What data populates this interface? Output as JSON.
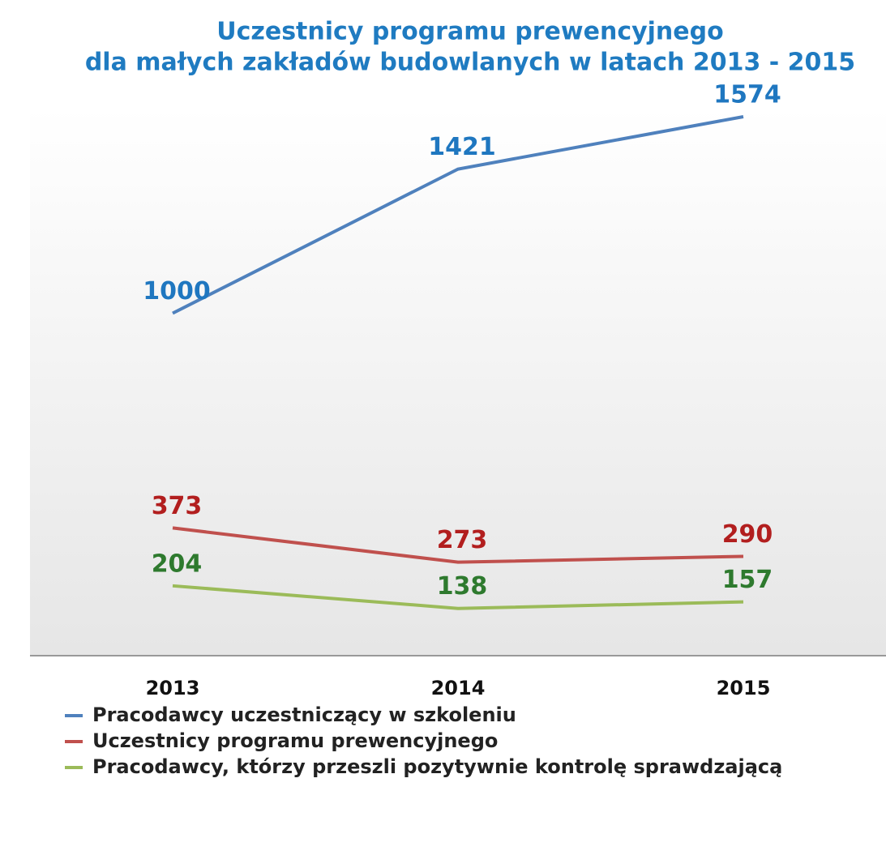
{
  "chart_data": {
    "type": "line",
    "title": [
      "Uczestnicy programu prewencyjnego",
      "dla małych zakładów budowlanych w latach 2013 - 2015"
    ],
    "categories": [
      "2013",
      "2014",
      "2015"
    ],
    "series": [
      {
        "name": "Pracodawcy uczestniczący w szkoleniu",
        "color": "#4f81bd",
        "label_color": "#1f77c0",
        "values": [
          1000,
          1421,
          1574
        ]
      },
      {
        "name": "Uczestnicy programu prewencyjnego",
        "color": "#c0504d",
        "label_color": "#b21e1e",
        "values": [
          373,
          273,
          290
        ]
      },
      {
        "name": "Pracodawcy, którzy przeszli pozytywnie kontrolę sprawdzającą",
        "color": "#9bbb59",
        "label_color": "#2e7a2e",
        "values": [
          204,
          138,
          157
        ]
      }
    ],
    "ylim": [
      0,
      1600
    ],
    "grid": false
  }
}
